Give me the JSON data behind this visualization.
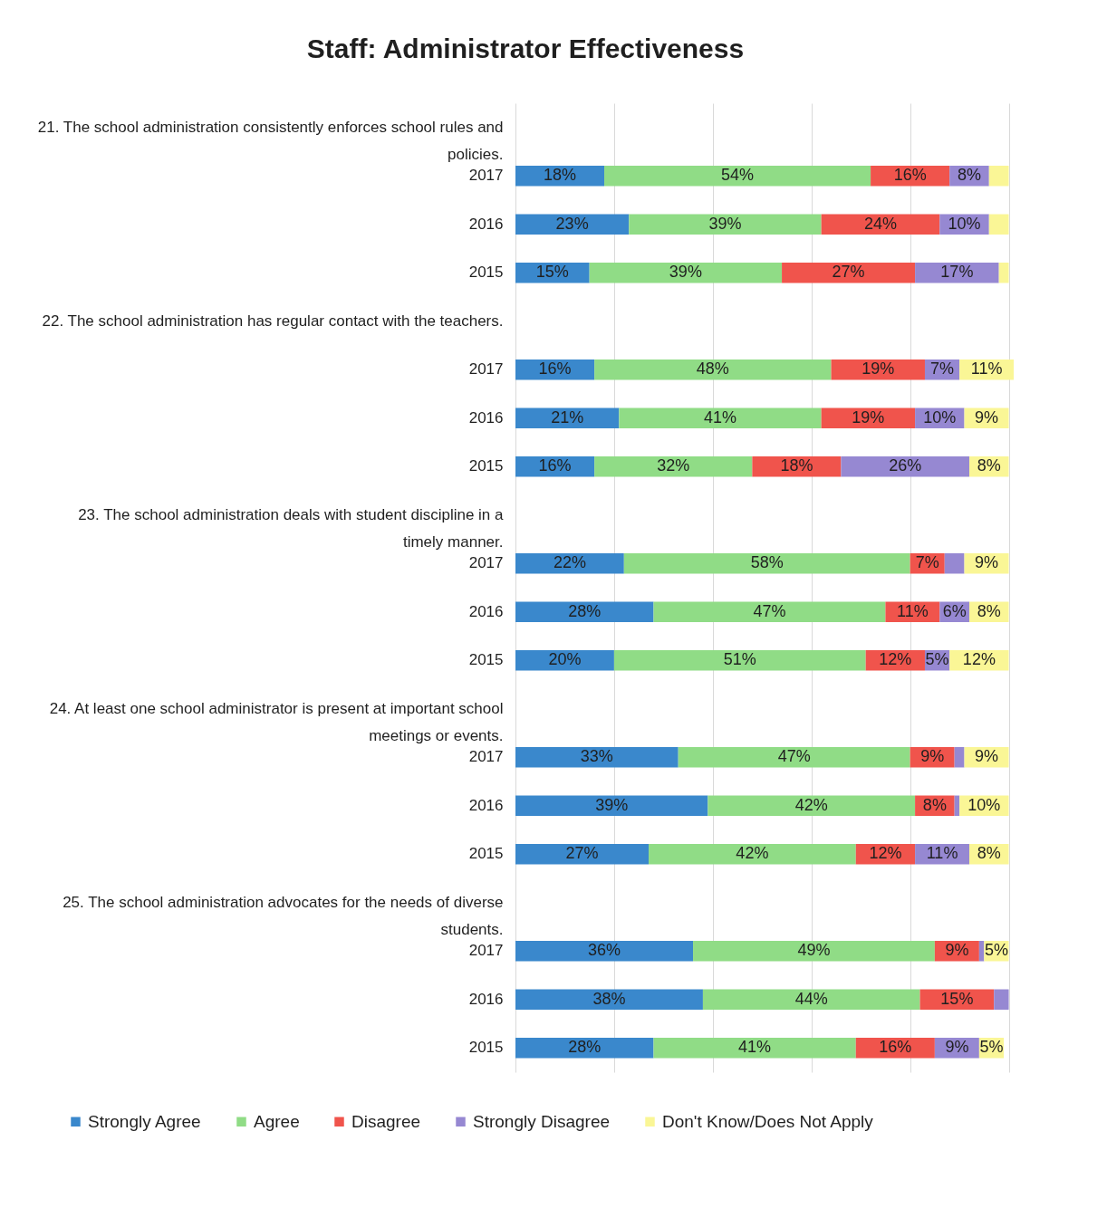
{
  "chart_data": {
    "type": "bar",
    "orientation": "horizontal",
    "stacked": true,
    "title": "Staff: Administrator Effectiveness",
    "categories": [
      "21. The school administration consistently enforces school rules and policies.",
      "2017",
      "2016",
      "2015",
      "22. The school administration has regular contact with the teachers.",
      "2017",
      "2016",
      "2015",
      "23. The school administration deals with student discipline in a timely manner.",
      "2017",
      "2016",
      "2015",
      "24. At least one school administrator is present at important school meetings or events.",
      "2017",
      "2016",
      "2015",
      "25. The school administration advocates for the needs of diverse students.",
      "2017",
      "2016",
      "2015"
    ],
    "series": [
      {
        "name": "Strongly Agree",
        "color": "#3a88cc",
        "values": [
          null,
          18,
          23,
          15,
          null,
          16,
          21,
          16,
          null,
          22,
          28,
          20,
          null,
          33,
          39,
          27,
          null,
          36,
          38,
          28
        ],
        "value_labels": [
          null,
          "18%",
          "23%",
          "15%",
          null,
          "16%",
          "21%",
          "16%",
          null,
          "22%",
          "28%",
          "20%",
          null,
          "33%",
          "39%",
          "27%",
          null,
          "36%",
          "38%",
          "28%"
        ]
      },
      {
        "name": "Agree",
        "color": "#90dc86",
        "values": [
          null,
          54,
          39,
          39,
          null,
          48,
          41,
          32,
          null,
          58,
          47,
          51,
          null,
          47,
          42,
          42,
          null,
          49,
          44,
          41
        ],
        "value_labels": [
          null,
          "54%",
          "39%",
          "39%",
          null,
          "48%",
          "41%",
          "32%",
          null,
          "58%",
          "47%",
          "51%",
          null,
          "47%",
          "42%",
          "42%",
          null,
          "49%",
          "44%",
          "41%"
        ]
      },
      {
        "name": "Disagree",
        "color": "#f0544c",
        "values": [
          null,
          16,
          24,
          27,
          null,
          19,
          19,
          18,
          null,
          7,
          11,
          12,
          null,
          9,
          8,
          12,
          null,
          9,
          15,
          16
        ],
        "value_labels": [
          null,
          "16%",
          "24%",
          "27%",
          null,
          "19%",
          "19%",
          "18%",
          null,
          "7%",
          "11%",
          "12%",
          null,
          "9%",
          "8%",
          "12%",
          null,
          "9%",
          "15%",
          "16%"
        ]
      },
      {
        "name": "Strongly Disagree",
        "color": "#9688d2",
        "values": [
          null,
          8,
          10,
          17,
          null,
          7,
          10,
          26,
          null,
          4,
          6,
          5,
          null,
          2,
          1,
          11,
          null,
          1,
          3,
          9
        ],
        "value_labels": [
          null,
          "8%",
          "10%",
          "17%",
          null,
          "7%",
          "10%",
          "26%",
          null,
          null,
          "6%",
          "5%",
          null,
          null,
          null,
          "11%",
          null,
          null,
          null,
          "9%"
        ]
      },
      {
        "name": "Don't Know/Does Not Apply",
        "color": "#faf696",
        "values": [
          null,
          4,
          4,
          2,
          null,
          11,
          9,
          8,
          null,
          9,
          8,
          12,
          null,
          9,
          10,
          8,
          null,
          5,
          null,
          5
        ],
        "value_labels": [
          null,
          null,
          null,
          null,
          null,
          "11%",
          "9%",
          "8%",
          null,
          "9%",
          "8%",
          "12%",
          null,
          "9%",
          "10%",
          "8%",
          null,
          "5%",
          null,
          "5%"
        ]
      }
    ],
    "xlim": [
      0,
      101
    ],
    "xticks": [
      {
        "value": 0,
        "label": null
      },
      {
        "value": 20,
        "label": null
      },
      {
        "value": 40,
        "label": null
      },
      {
        "value": 60,
        "label": null
      },
      {
        "value": 80,
        "label": null
      },
      {
        "value": 100,
        "label": null
      }
    ],
    "grid": "x",
    "tick_labels": "y",
    "legend": "bottom"
  }
}
